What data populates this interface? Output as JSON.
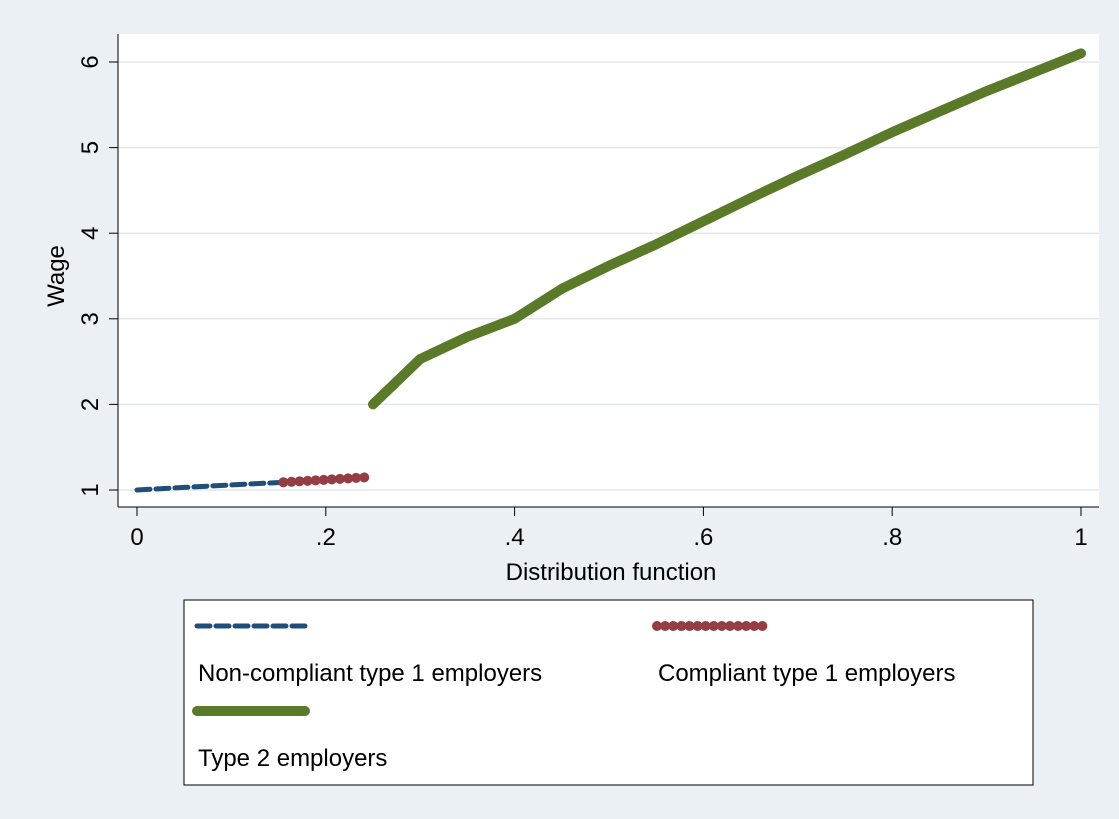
{
  "chart_data": {
    "type": "line",
    "title": "",
    "xlabel": "Distribution function",
    "ylabel": "Wage",
    "xlim": [
      0,
      1
    ],
    "ylim": [
      1,
      6.1
    ],
    "x_ticks": [
      0,
      0.2,
      0.4,
      0.6,
      0.8,
      1
    ],
    "x_tick_labels": [
      "0",
      ".2",
      ".4",
      ".6",
      ".8",
      "1"
    ],
    "y_ticks": [
      1,
      2,
      3,
      4,
      5,
      6
    ],
    "y_tick_labels": [
      "1",
      "2",
      "3",
      "4",
      "5",
      "6"
    ],
    "grid": true,
    "legend_position": "bottom",
    "series": [
      {
        "name": "Non-compliant type 1 employers",
        "color": "#1f4e79",
        "style": "dashed",
        "x": [
          0,
          0.05,
          0.1,
          0.155
        ],
        "y": [
          1.0,
          1.03,
          1.06,
          1.09
        ]
      },
      {
        "name": "Compliant type 1 employers",
        "color": "#943d45",
        "style": "dotted-thick",
        "x": [
          0.155,
          0.2,
          0.245
        ],
        "y": [
          1.09,
          1.12,
          1.15
        ]
      },
      {
        "name": "Type 2 employers",
        "color": "#5a7a2a",
        "style": "solid-thick",
        "x": [
          0.25,
          0.3,
          0.35,
          0.4,
          0.45,
          0.5,
          0.55,
          0.6,
          0.65,
          0.7,
          0.75,
          0.8,
          0.85,
          0.9,
          0.95,
          1.0
        ],
        "y": [
          2.0,
          2.53,
          2.79,
          3.0,
          3.35,
          3.62,
          3.87,
          4.14,
          4.41,
          4.67,
          4.92,
          5.18,
          5.42,
          5.66,
          5.88,
          6.1
        ]
      }
    ]
  }
}
